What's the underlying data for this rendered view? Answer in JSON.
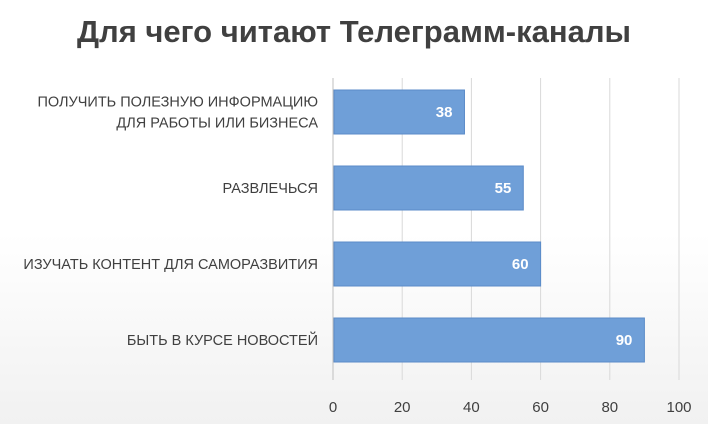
{
  "chart_data": {
    "type": "bar",
    "orientation": "horizontal",
    "title": "Для чего читают Телеграмм-каналы",
    "categories": [
      "ПОЛУЧИТЬ ПОЛЕЗНУЮ ИНФОРМАЦИЮ ДЛЯ РАБОТЫ ИЛИ БИЗНЕСА",
      "РАЗВЛЕЧЬСЯ",
      "ИЗУЧАТЬ КОНТЕНТ ДЛЯ САМОРАЗВИТИЯ",
      "БЫТЬ В КУРСЕ НОВОСТЕЙ"
    ],
    "category_lines": [
      [
        "ПОЛУЧИТЬ ПОЛЕЗНУЮ ИНФОРМАЦИЮ",
        "ДЛЯ РАБОТЫ ИЛИ БИЗНЕСА"
      ],
      [
        "РАЗВЛЕЧЬСЯ"
      ],
      [
        "ИЗУЧАТЬ КОНТЕНТ ДЛЯ САМОРАЗВИТИЯ"
      ],
      [
        "БЫТЬ В КУРСЕ НОВОСТЕЙ"
      ]
    ],
    "values": [
      38,
      55,
      60,
      90
    ],
    "xlim": [
      0,
      100
    ],
    "xticks": [
      0,
      20,
      40,
      60,
      80,
      100
    ],
    "grid": true,
    "data_labels": true,
    "legend": "none",
    "colors": {
      "bar": "#6F9FD8",
      "bar_stroke": "#5B8BC8",
      "grid": "#D9D9D9",
      "axis": "#BFBFBF"
    }
  }
}
